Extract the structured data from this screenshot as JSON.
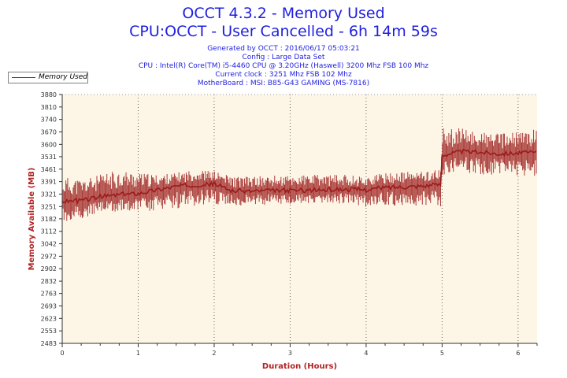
{
  "header": {
    "title": "OCCT 4.3.2 - Memory Used",
    "subtitle": "CPU:OCCT - User Cancelled - 6h 14m 59s",
    "meta_lines": [
      "Generated by OCCT : 2016/06/17 05:03:21",
      "Config : Large Data Set",
      "CPU : Intel(R) Core(TM) i5-4460 CPU @ 3.20GHz (Haswell) 3200 Mhz FSB 100 Mhz",
      "Current clock : 3251 Mhz FSB 102 Mhz",
      "MotherBoard : MSI: B85-G43 GAMING (MS-7816)"
    ]
  },
  "colors": {
    "title": "#1f1fe0",
    "series": "#9b1b1b",
    "plot_background": "#fdf5e6",
    "axis_title": "#b22222"
  },
  "chart_data": {
    "type": "line",
    "xlabel": "Duration (Hours)",
    "ylabel": "Memory Available (MB)",
    "xlim": [
      0,
      6.25
    ],
    "ylim": [
      2483,
      3880
    ],
    "x_ticks": [
      0,
      1,
      2,
      3,
      4,
      5,
      6
    ],
    "y_ticks": [
      2483,
      2553,
      2623,
      2693,
      2763,
      2832,
      2902,
      2972,
      3042,
      3112,
      3182,
      3251,
      3321,
      3391,
      3461,
      3531,
      3600,
      3670,
      3740,
      3810,
      3880
    ],
    "grid": true,
    "legend_position": "top-left",
    "series": [
      {
        "name": "Memory Used",
        "x": [
          0,
          0.25,
          0.5,
          0.75,
          1.0,
          1.25,
          1.5,
          1.75,
          2.0,
          2.25,
          2.5,
          2.75,
          3.0,
          3.25,
          3.5,
          3.75,
          4.0,
          4.25,
          4.5,
          4.75,
          4.98,
          5.0,
          5.25,
          5.5,
          5.75,
          6.0,
          6.25
        ],
        "y": [
          3282,
          3285,
          3305,
          3318,
          3325,
          3345,
          3365,
          3372,
          3378,
          3338,
          3338,
          3340,
          3342,
          3342,
          3345,
          3348,
          3345,
          3358,
          3362,
          3368,
          3375,
          3540,
          3560,
          3556,
          3548,
          3552,
          3555
        ],
        "spread_upper": [
          3420,
          3405,
          3430,
          3460,
          3440,
          3430,
          3440,
          3460,
          3450,
          3420,
          3420,
          3425,
          3425,
          3430,
          3430,
          3430,
          3420,
          3440,
          3445,
          3450,
          3460,
          3690,
          3690,
          3670,
          3660,
          3670,
          3690
        ],
        "spread_lower": [
          3150,
          3175,
          3210,
          3225,
          3215,
          3230,
          3240,
          3250,
          3255,
          3255,
          3260,
          3260,
          3265,
          3265,
          3265,
          3265,
          3250,
          3255,
          3255,
          3250,
          3250,
          3420,
          3440,
          3430,
          3420,
          3420,
          3420
        ]
      }
    ]
  }
}
